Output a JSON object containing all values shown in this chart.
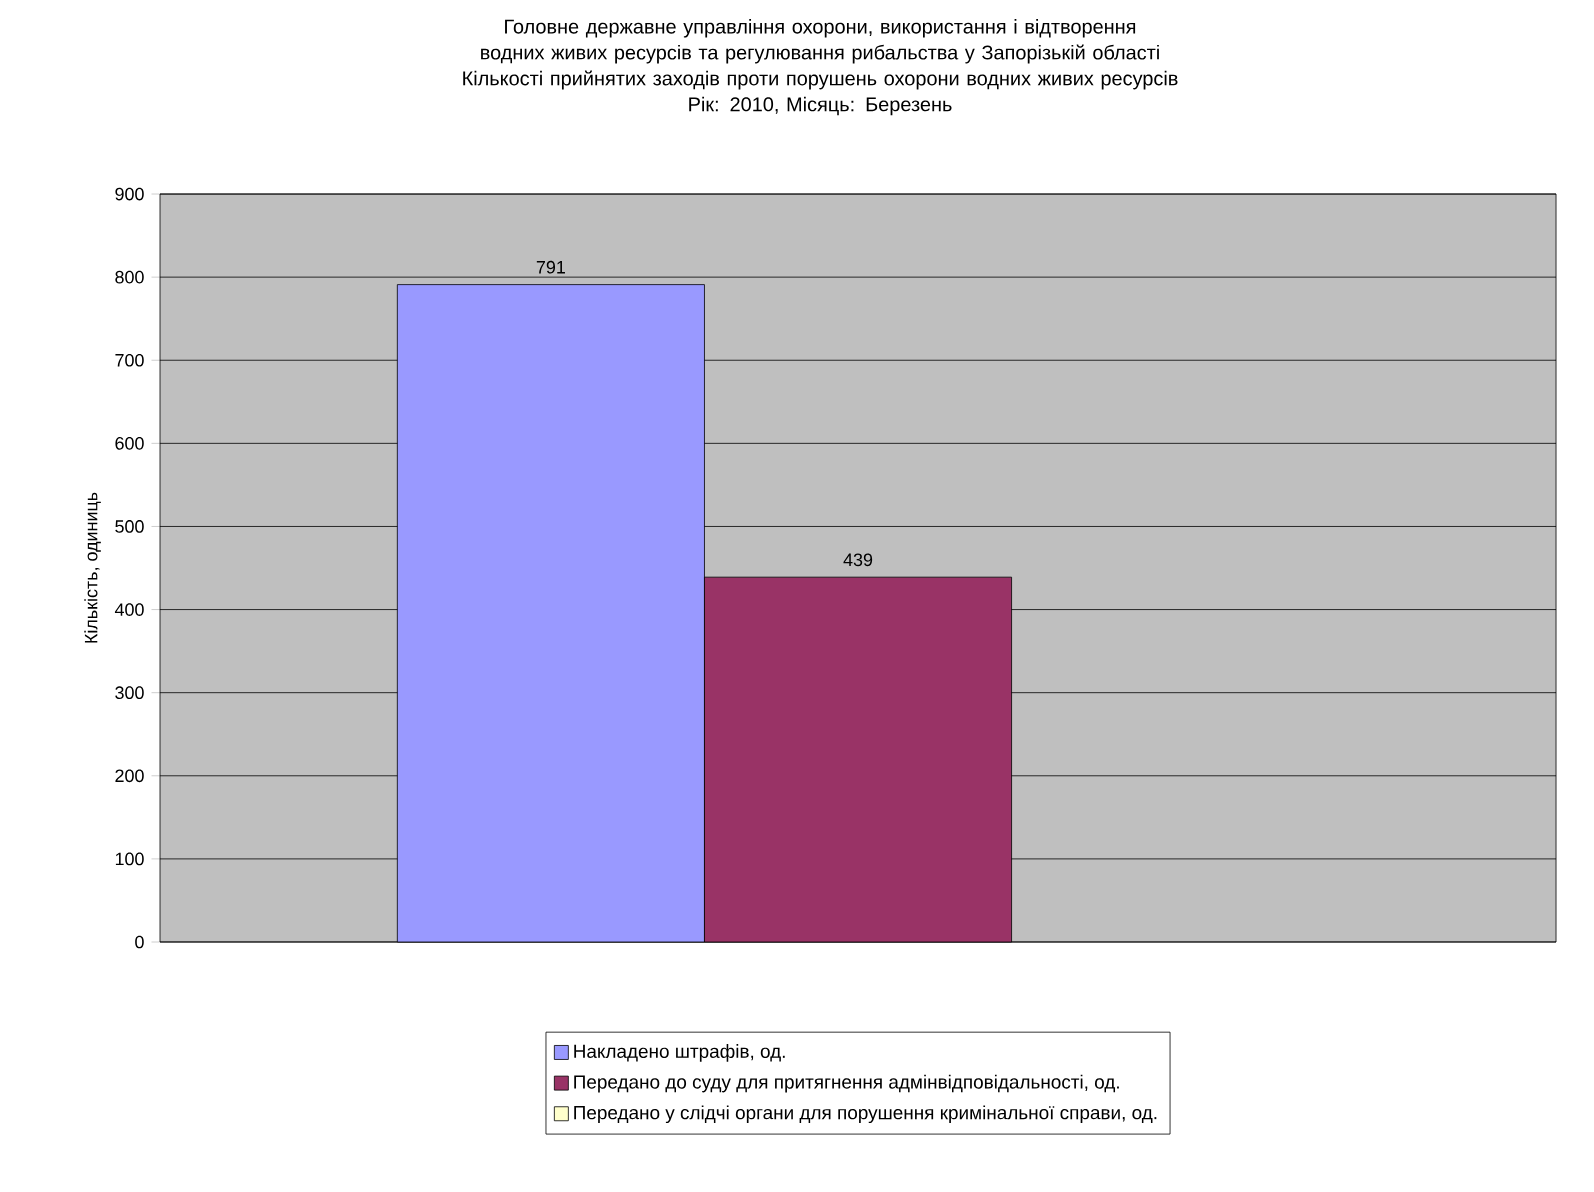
{
  "chart_data": {
    "type": "bar",
    "title": "Головне державне управління охорони, використання і відтворення водних живих ресурсів та регулювання рибальства у Запорізькій області",
    "subtitle": "Кількості прийнятих заходів проти порушень охорони водних живих ресурсів",
    "annotations": [
      "Рік: 2010, Місяць: Березень"
    ],
    "ylabel": "Кількість, одиниць",
    "categories": [
      null
    ],
    "series": [
      {
        "name": "Накладено штрафів, од.",
        "color": "#9999ff",
        "values": [
          791
        ]
      },
      {
        "name": "Передано до суду для притягнення адмінвідповідальності, од.",
        "color": "#993366",
        "values": [
          439
        ]
      },
      {
        "name": "Передано у слідчі органи для порушення кримінальної справи, од.",
        "color": "#ffffcc",
        "values": [
          null
        ]
      }
    ],
    "ylim": [
      0,
      900
    ],
    "yticks": [
      0,
      100,
      200,
      300,
      400,
      500,
      600,
      700,
      800,
      900
    ],
    "grid": "y",
    "legend": "bottom",
    "data_labels": true
  }
}
